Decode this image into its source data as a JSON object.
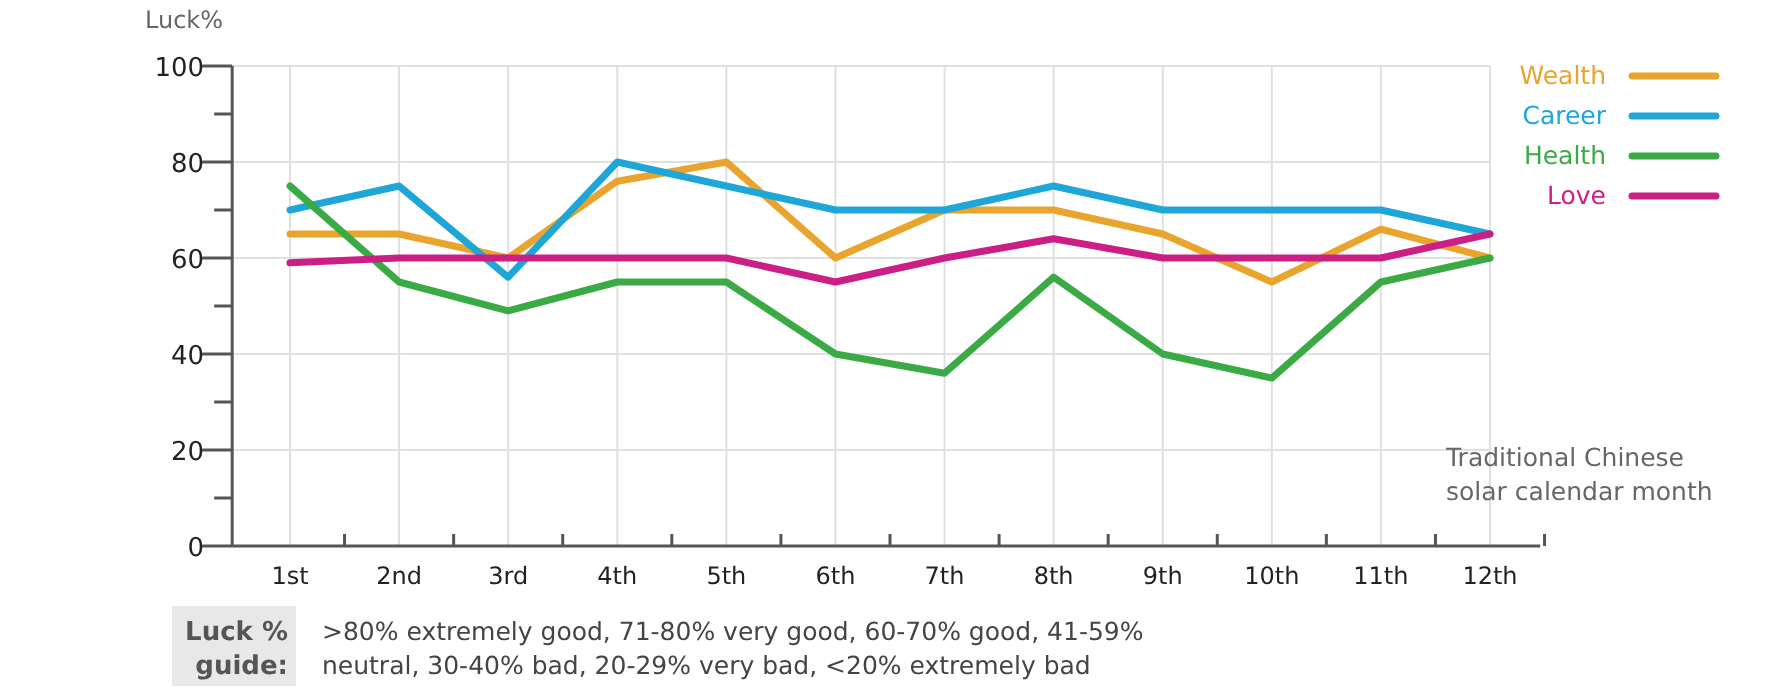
{
  "chart_data": {
    "type": "line",
    "ylabel": "Luck%",
    "xlabel": "Traditional Chinese solar calendar month",
    "categories": [
      "1st",
      "2nd",
      "3rd",
      "4th",
      "5th",
      "6th",
      "7th",
      "8th",
      "9th",
      "10th",
      "11th",
      "12th"
    ],
    "ylim": [
      0,
      100
    ],
    "yticks": [
      0,
      {
        "value": 10,
        "label": null
      },
      20,
      {
        "value": 30,
        "label": null
      },
      40,
      {
        "value": 50,
        "label": null
      },
      60,
      {
        "value": 70,
        "label": null
      },
      80,
      {
        "value": 90,
        "label": null
      },
      100
    ],
    "grid": true,
    "legend": "top right",
    "marker": "none",
    "line_style": "solid",
    "series": [
      {
        "name": "Wealth",
        "color": "#e8a42c",
        "values": [
          65,
          65,
          60,
          76,
          80,
          60,
          70,
          70,
          65,
          55,
          66,
          60
        ]
      },
      {
        "name": "Career",
        "color": "#1ea6d8",
        "values": [
          70,
          75,
          56,
          80,
          75,
          70,
          70,
          75,
          70,
          70,
          70,
          65
        ]
      },
      {
        "name": "Health",
        "color": "#3aaa45",
        "values": [
          75,
          55,
          49,
          55,
          55,
          40,
          36,
          56,
          40,
          35,
          55,
          60
        ]
      },
      {
        "name": "Love",
        "color": "#cc1f86",
        "values": [
          59,
          60,
          60,
          60,
          60,
          55,
          60,
          64,
          60,
          60,
          60,
          65
        ]
      }
    ],
    "annotations": [
      "Luck % guide:",
      ">80% extremely good, 71-80% very good, 60-70% good, 41-59% neutral, 30-40% bad, 20-29% very bad, <20% extremely bad"
    ]
  }
}
